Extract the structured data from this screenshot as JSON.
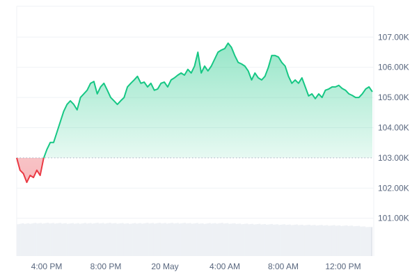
{
  "chart_data": {
    "type": "area",
    "xlim_labels": [
      "4:00 PM",
      "8:00 PM",
      "20 May",
      "4:00 AM",
      "8:00 AM",
      "12:00 PM"
    ],
    "yticks": [
      "107.00K",
      "106.00K",
      "105.00K",
      "104.00K",
      "103.00K",
      "102.00K",
      "101.00K"
    ],
    "ytick_values": [
      107,
      106,
      105,
      104,
      103,
      102,
      101
    ],
    "ylim": [
      99.75,
      108.02
    ],
    "baseline": 103.0,
    "grid": true,
    "colors": {
      "up": "#16c784",
      "down": "#ea3943",
      "volume": "#eef1f5",
      "grid": "#eff2f5"
    },
    "values": [
      103.0,
      102.59,
      102.48,
      102.19,
      102.42,
      102.35,
      102.59,
      102.42,
      102.98,
      103.28,
      103.51,
      103.51,
      103.85,
      104.2,
      104.54,
      104.77,
      104.89,
      104.77,
      104.59,
      105.0,
      105.12,
      105.24,
      105.47,
      105.53,
      105.12,
      105.35,
      105.47,
      105.24,
      105.0,
      104.89,
      104.77,
      104.89,
      105.0,
      105.35,
      105.47,
      105.58,
      105.7,
      105.47,
      105.51,
      105.35,
      105.47,
      105.24,
      105.28,
      105.47,
      105.51,
      105.35,
      105.58,
      105.65,
      105.74,
      105.81,
      105.74,
      105.93,
      105.81,
      106.04,
      106.5,
      105.81,
      106.04,
      105.88,
      106.04,
      106.27,
      106.5,
      106.57,
      106.62,
      106.8,
      106.66,
      106.39,
      106.16,
      106.11,
      106.04,
      105.88,
      105.58,
      105.81,
      105.65,
      105.58,
      105.7,
      106.0,
      106.39,
      106.39,
      106.34,
      106.16,
      106.04,
      105.7,
      105.47,
      105.58,
      105.47,
      105.65,
      105.35,
      105.05,
      105.12,
      104.96,
      105.12,
      105.0,
      105.24,
      105.28,
      105.35,
      105.35,
      105.4,
      105.3,
      105.24,
      105.12,
      105.07,
      105.0,
      105.0,
      105.12,
      105.28,
      105.35,
      105.19
    ],
    "volume_relative": [
      0.98,
      1,
      1,
      0.99,
      1,
      1,
      0.99,
      1,
      1,
      1,
      0.99,
      1,
      0.98,
      0.97,
      0.96,
      0.95,
      0.94,
      0.93,
      0.92,
      0.88
    ]
  }
}
